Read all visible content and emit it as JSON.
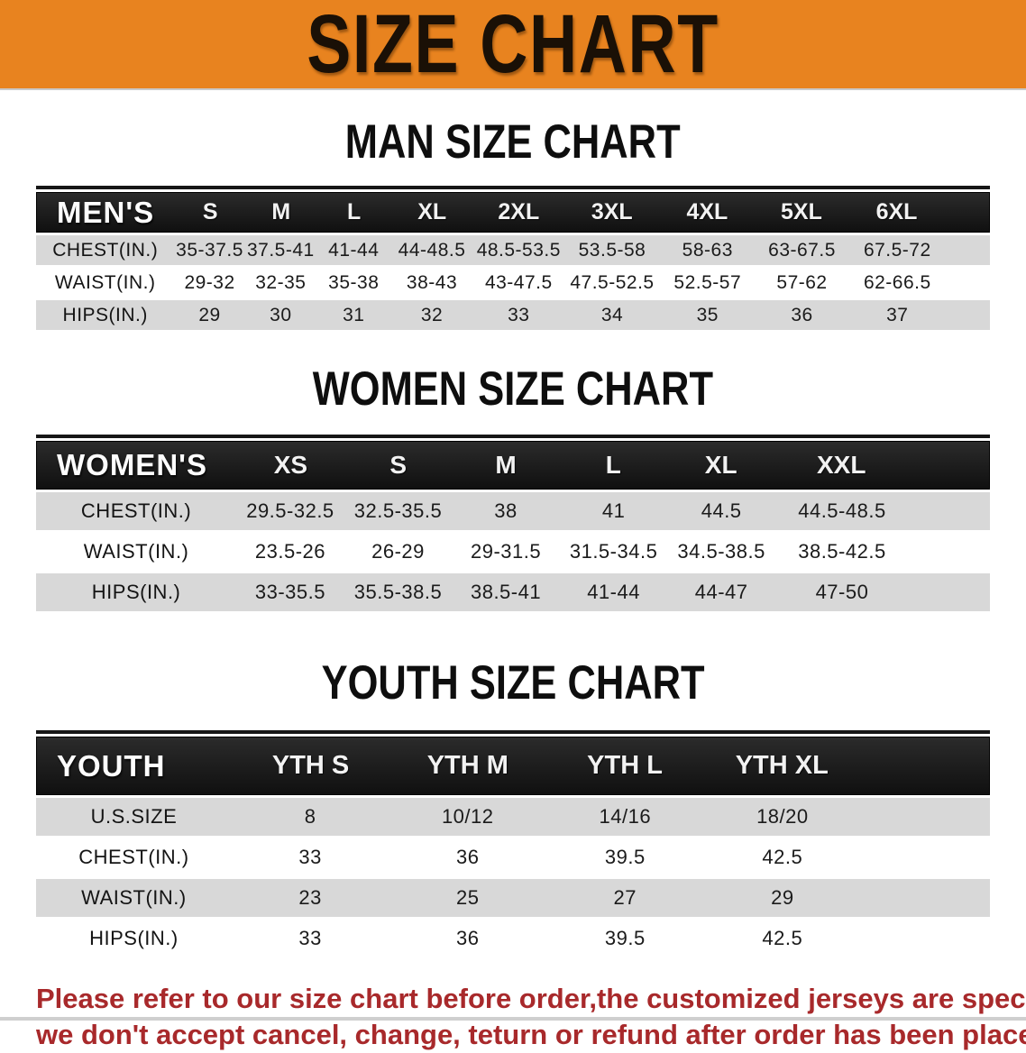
{
  "banner": {
    "title": "SIZE CHART",
    "bg_color": "#E8831F",
    "text_color": "#1a1006"
  },
  "colors": {
    "table_header_bg": "#1b1b1b",
    "row_gray": "#d8d8d8",
    "row_white": "#ffffff"
  },
  "men": {
    "heading": "MAN SIZE CHART",
    "header_label": "MEN'S",
    "sizes": [
      "S",
      "M",
      "L",
      "XL",
      "2XL",
      "3XL",
      "4XL",
      "5XL",
      "6XL"
    ],
    "rows": [
      {
        "label": "CHEST(IN.)",
        "values": [
          "35-37.5",
          "37.5-41",
          "41-44",
          "44-48.5",
          "48.5-53.5",
          "53.5-58",
          "58-63",
          "63-67.5",
          "67.5-72"
        ]
      },
      {
        "label": "WAIST(IN.)",
        "values": [
          "29-32",
          "32-35",
          "35-38",
          "38-43",
          "43-47.5",
          "47.5-52.5",
          "52.5-57",
          "57-62",
          "62-66.5"
        ]
      },
      {
        "label": "HIPS(IN.)",
        "values": [
          "29",
          "30",
          "31",
          "32",
          "33",
          "34",
          "35",
          "36",
          "37"
        ]
      }
    ]
  },
  "women": {
    "heading": "WOMEN SIZE CHART",
    "header_label": "WOMEN'S",
    "sizes": [
      "XS",
      "S",
      "M",
      "L",
      "XL",
      "XXL"
    ],
    "rows": [
      {
        "label": "CHEST(IN.)",
        "values": [
          "29.5-32.5",
          "32.5-35.5",
          "38",
          "41",
          "44.5",
          "44.5-48.5"
        ]
      },
      {
        "label": "WAIST(IN.)",
        "values": [
          "23.5-26",
          "26-29",
          "29-31.5",
          "31.5-34.5",
          "34.5-38.5",
          "38.5-42.5"
        ]
      },
      {
        "label": "HIPS(IN.)",
        "values": [
          "33-35.5",
          "35.5-38.5",
          "38.5-41",
          "41-44",
          "44-47",
          "47-50"
        ]
      }
    ]
  },
  "youth": {
    "heading": "YOUTH SIZE CHART",
    "header_label": "YOUTH",
    "sizes": [
      "YTH S",
      "YTH M",
      "YTH L",
      "YTH XL"
    ],
    "rows": [
      {
        "label": "U.S.SIZE",
        "values": [
          "8",
          "10/12",
          "14/16",
          "18/20"
        ]
      },
      {
        "label": "CHEST(IN.)",
        "values": [
          "33",
          "36",
          "39.5",
          "42.5"
        ]
      },
      {
        "label": "WAIST(IN.)",
        "values": [
          "23",
          "25",
          "27",
          "29"
        ]
      },
      {
        "label": "HIPS(IN.)",
        "values": [
          "33",
          "36",
          "39.5",
          "42.5"
        ]
      }
    ]
  },
  "disclaimer": {
    "line1": "Please refer to our size chart before order,the customized jerseys are special products,",
    "line2": "we don't accept cancel, change, teturn or refund after order has been placed!",
    "color": "#A8292B"
  }
}
